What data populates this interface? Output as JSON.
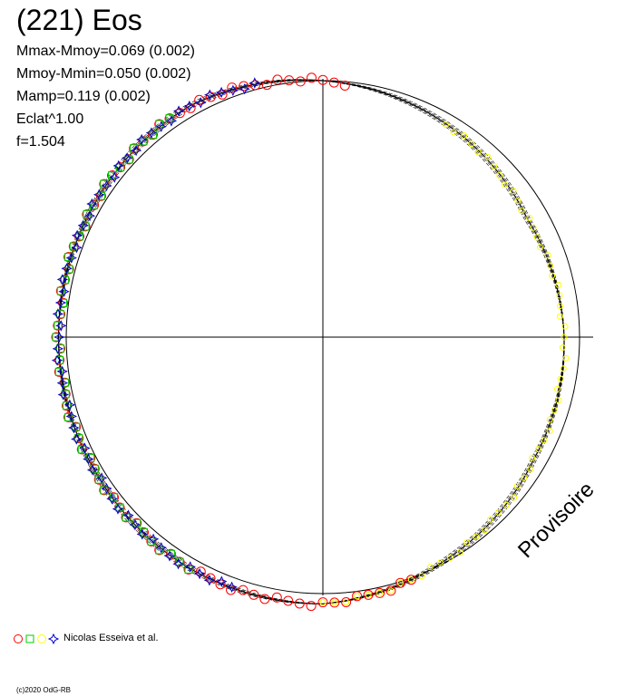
{
  "header": {
    "title": "(221) Eos",
    "stats": [
      "Mmax-Mmoy=0.069 (0.002)",
      "Mmoy-Mmin=0.050 (0.002)",
      "Mamp=0.119 (0.002)",
      "Eclat^1.00",
      "f=1.504"
    ]
  },
  "watermark": "Provisoire",
  "legend": {
    "credit": "Nicolas Esseiva et al.",
    "symbols": [
      {
        "shape": "circle",
        "color": "#ff0000"
      },
      {
        "shape": "square",
        "color": "#00cc00"
      },
      {
        "shape": "circle",
        "color": "#ffff00"
      },
      {
        "shape": "star",
        "color": "#0000cc"
      }
    ]
  },
  "footer": {
    "copyright": "(c)2020 OdG-RB"
  },
  "chart_data": {
    "type": "scatter",
    "coordinate_system": "polar",
    "period_scale": "f=1.504",
    "amplitude_mag": 0.119,
    "reference_circle_radius": 1.0,
    "axes": {
      "x_range": [
        -1,
        1
      ],
      "y_range": [
        -1,
        1
      ],
      "crosshair": true,
      "grid": false
    },
    "model_curve_sampled": {
      "description": "light-curve loop, angle in degrees (0 = east, counter-clockwise), radius relative to reference circle",
      "angle_deg": [
        0,
        30,
        60,
        90,
        120,
        150,
        180,
        210,
        240,
        270,
        300,
        330,
        360
      ],
      "radius": [
        0.94,
        0.92,
        0.96,
        1.0,
        1.04,
        1.03,
        1.03,
        1.03,
        1.04,
        1.04,
        0.99,
        0.95,
        0.94
      ]
    },
    "series": [
      {
        "name": "red",
        "marker": "circle",
        "color": "#ff0000",
        "angle_range_deg": [
          85,
          290
        ]
      },
      {
        "name": "green",
        "marker": "square",
        "color": "#00cc00",
        "angle_range_deg": [
          125,
          240
        ]
      },
      {
        "name": "yellow",
        "marker": "circle",
        "color": "#ffff00",
        "angle_range_deg": [
          -90,
          60
        ]
      },
      {
        "name": "blue",
        "marker": "star",
        "color": "#0000cc",
        "angle_range_deg": [
          105,
          250
        ]
      }
    ]
  }
}
